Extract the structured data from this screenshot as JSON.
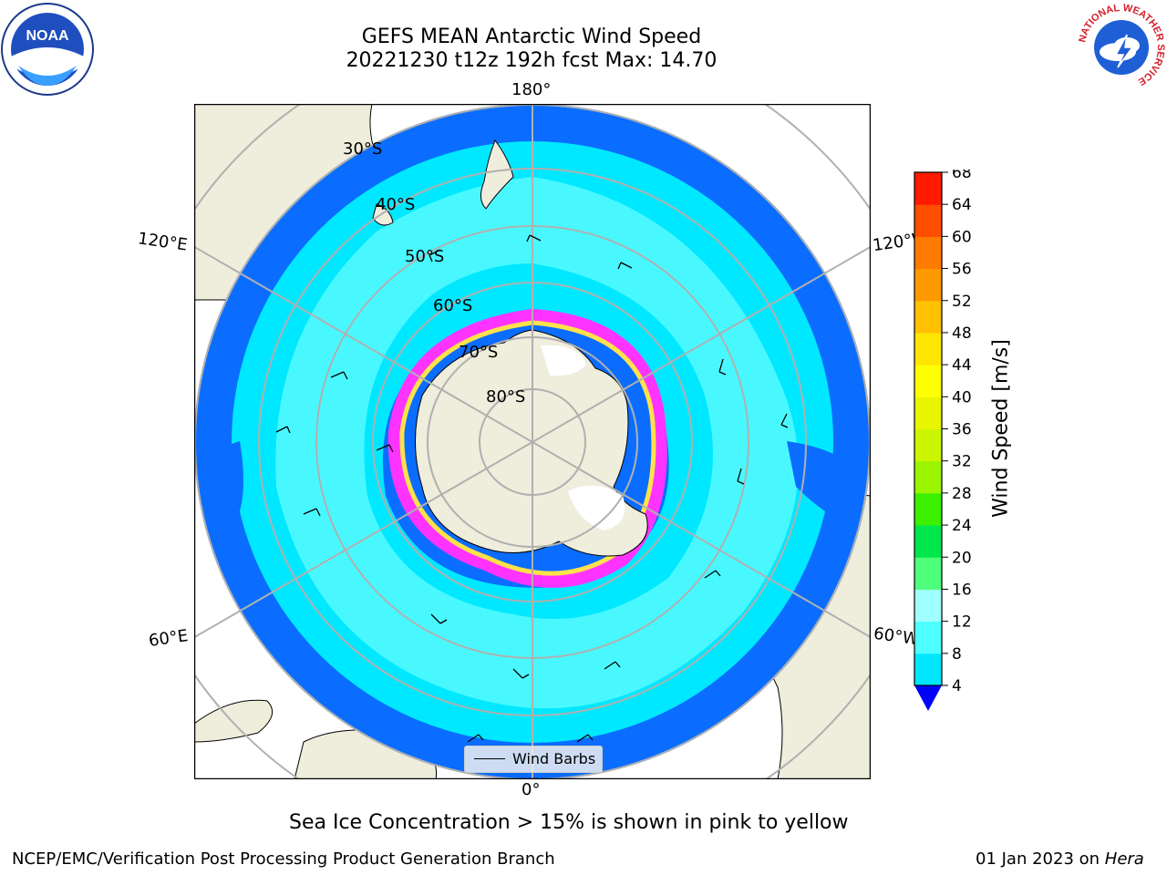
{
  "header": {
    "title_line1": "GEFS MEAN Antarctic Wind Speed",
    "title_line2": "20221230 t12z 192h fcst   Max: 14.70"
  },
  "map": {
    "lon_labels": {
      "top": "180°",
      "bottom": "0°",
      "left_upper": "120°E",
      "right_upper": "120°W",
      "left_lower": "60°E",
      "right_lower": "60°W"
    },
    "lat_labels": [
      "30°S",
      "40°S",
      "50°S",
      "60°S",
      "70°S",
      "80°S"
    ],
    "colors": {
      "land": "#efeddc",
      "ocean_low": "#0a6dff",
      "ocean_mid": "#00e8ff",
      "ocean_high": "#5bfbff",
      "ice_pink": "#ff33ff",
      "ice_yellow": "#ffe24a"
    }
  },
  "legend": {
    "label": "Wind Barbs"
  },
  "colorbar": {
    "title": "Wind Speed [m/s]",
    "ticks": [
      "68",
      "64",
      "60",
      "56",
      "52",
      "48",
      "44",
      "40",
      "36",
      "32",
      "28",
      "24",
      "20",
      "16",
      "12",
      "8",
      "4"
    ],
    "colors_low_to_high": [
      "#0064ff",
      "#00e6ff",
      "#4dffff",
      "#a0ffff",
      "#4dff7a",
      "#00e64d",
      "#3cf000",
      "#9bf500",
      "#ccf500",
      "#e8f500",
      "#ffff00",
      "#ffe600",
      "#ffc000",
      "#ff9900",
      "#ff7a00",
      "#ff4d00",
      "#ff1a00"
    ],
    "extend_color": "#0000ff"
  },
  "footer": {
    "note": "Sea Ice Concentration > 15% is shown in pink to yellow",
    "credit": "NCEP/EMC/Verification Post Processing Product Generation Branch",
    "date": "01 Jan 2023 on ",
    "host": "Hera"
  },
  "logos": {
    "noaa": "NOAA",
    "nws_ring": "NATIONAL WEATHER SERVICE"
  }
}
